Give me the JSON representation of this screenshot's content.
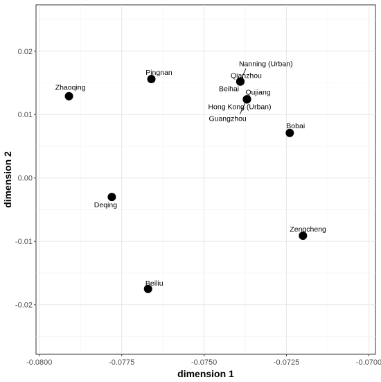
{
  "chart_data": {
    "type": "scatter",
    "xlabel": "dimension 1",
    "ylabel": "dimension 2",
    "xlim": [
      -0.0801,
      -0.0698
    ],
    "ylim": [
      -0.0278,
      0.0273
    ],
    "x_ticks": [
      -0.08,
      -0.0775,
      -0.075,
      -0.0725,
      -0.07
    ],
    "x_tick_labels": [
      "-0.0800",
      "-0.0775",
      "-0.0750",
      "-0.0725",
      "-0.0700"
    ],
    "y_ticks": [
      -0.02,
      -0.01,
      0.0,
      0.01,
      0.02
    ],
    "y_tick_labels": [
      "-0.02",
      "-0.01",
      "0.00",
      "0.01",
      "0.02"
    ],
    "grid": true,
    "points": [
      {
        "label": "Zhaoqing",
        "x": -0.0791,
        "y": 0.0129
      },
      {
        "label": "Pingnan",
        "x": -0.0766,
        "y": 0.0156
      },
      {
        "label": "Deqing",
        "x": -0.0778,
        "y": -0.003
      },
      {
        "label": "Beiliu",
        "x": -0.0767,
        "y": -0.0175
      },
      {
        "label": "Nanning (Urban)",
        "x": -0.0739,
        "y": 0.0152
      },
      {
        "label": "Qianzhou",
        "x": -0.0739,
        "y": 0.0152
      },
      {
        "label": "Beihai",
        "x": -0.0739,
        "y": 0.0152
      },
      {
        "label": "Qujiang",
        "x": -0.0737,
        "y": 0.0124
      },
      {
        "label": "Hong Kong (Urban)",
        "x": -0.0737,
        "y": 0.0124
      },
      {
        "label": "Guangzhou",
        "x": -0.0737,
        "y": 0.0124
      },
      {
        "label": "Bobai",
        "x": -0.0724,
        "y": 0.0071
      },
      {
        "label": "Zengcheng",
        "x": -0.072,
        "y": -0.0091
      }
    ],
    "point_color": "#000000"
  }
}
